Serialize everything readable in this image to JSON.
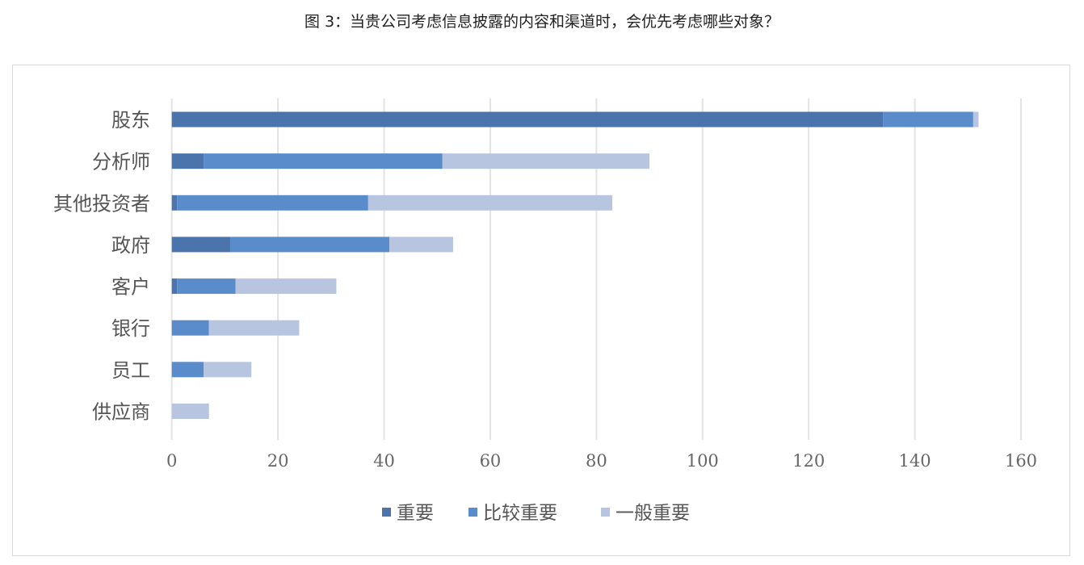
{
  "chart_data": {
    "type": "bar",
    "orientation": "horizontal",
    "stacked": true,
    "title": "图 3：当贵公司考虑信息披露的内容和渠道时，会优先考虑哪些对象？",
    "categories": [
      "股东",
      "分析师",
      "其他投资者",
      "政府",
      "客户",
      "银行",
      "员工",
      "供应商"
    ],
    "series": [
      {
        "name": "重要",
        "color": "#4a74ab",
        "values": [
          134,
          6,
          1,
          11,
          1,
          0,
          0,
          0
        ]
      },
      {
        "name": "比较重要",
        "color": "#5a8bcb",
        "values": [
          17,
          45,
          36,
          30,
          11,
          7,
          6,
          0
        ]
      },
      {
        "name": "一般重要",
        "color": "#b7c5e0",
        "values": [
          1,
          39,
          46,
          12,
          19,
          17,
          9,
          7
        ]
      }
    ],
    "xlim": [
      0,
      160
    ],
    "xticks": [
      0,
      20,
      40,
      60,
      80,
      100,
      120,
      140,
      160
    ],
    "grid": true,
    "legend_position": "bottom"
  }
}
